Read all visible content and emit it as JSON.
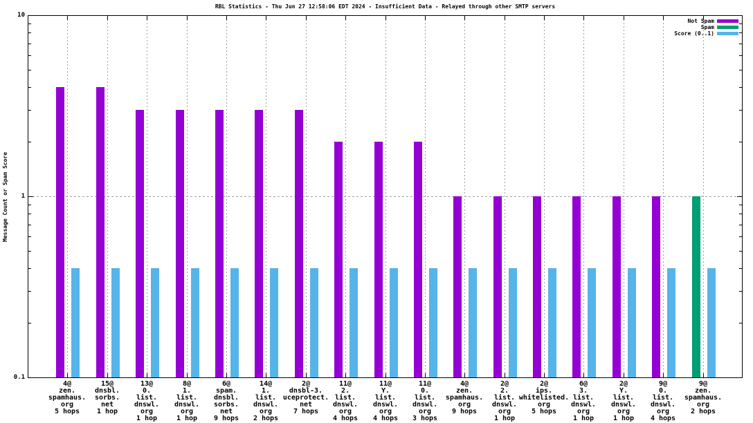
{
  "title": "RBL Statistics - Thu Jun 27 12:58:06 EDT 2024 - Insufficient Data - Relayed through other SMTP servers",
  "y_axis": {
    "label": "Message Count or Spam Score",
    "scale": "log",
    "range": [
      0.1,
      10
    ],
    "ticks": [
      "10",
      "1",
      "0.1"
    ]
  },
  "legend": [
    {
      "label": "Not Spam",
      "color": "#9400d3"
    },
    {
      "label": "Spam",
      "color": "#009e73"
    },
    {
      "label": "Score (0..1)",
      "color": "#56b4e9"
    }
  ],
  "colors": {
    "not_spam": "#9400d3",
    "spam": "#009e73",
    "score": "#56b4e9",
    "grid": "#9e9e9e"
  },
  "chart_data": {
    "type": "bar",
    "scale": "log",
    "ylim": [
      0.1,
      10
    ],
    "ylabel": "Message Count or Spam Score",
    "grid": "dotted, vertical per category and horizontal at y=1",
    "legend_position": "top-right",
    "categories": [
      [
        "4@",
        "zen.",
        "spamhaus.",
        "org",
        "5 hops"
      ],
      [
        "15@",
        "dnsbl.",
        "sorbs.",
        "net",
        "1 hop"
      ],
      [
        "13@",
        "0.",
        "list.",
        "dnswl.",
        "org",
        "1 hop"
      ],
      [
        "8@",
        "1.",
        "list.",
        "dnswl.",
        "org",
        "1 hop"
      ],
      [
        "6@",
        "spam.",
        "dnsbl.",
        "sorbs.",
        "net",
        "9 hops"
      ],
      [
        "14@",
        "1.",
        "list.",
        "dnswl.",
        "org",
        "2 hops"
      ],
      [
        "2@",
        "dnsbl-3.",
        "uceprotect.",
        "net",
        "7 hops"
      ],
      [
        "11@",
        "2.",
        "list.",
        "dnswl.",
        "org",
        "4 hops"
      ],
      [
        "11@",
        "Y.",
        "list.",
        "dnswl.",
        "org",
        "4 hops"
      ],
      [
        "11@",
        "0.",
        "list.",
        "dnswl.",
        "org",
        "3 hops"
      ],
      [
        "4@",
        "zen.",
        "spamhaus.",
        "org",
        "9 hops"
      ],
      [
        "2@",
        "2.",
        "list.",
        "dnswl.",
        "org",
        "1 hop"
      ],
      [
        "2@",
        "ips.",
        "whitelisted.",
        "org",
        "5 hops"
      ],
      [
        "6@",
        "3.",
        "list.",
        "dnswl.",
        "org",
        "1 hop"
      ],
      [
        "2@",
        "Y.",
        "list.",
        "dnswl.",
        "org",
        "1 hop"
      ],
      [
        "9@",
        "0.",
        "list.",
        "dnswl.",
        "org",
        "4 hops"
      ],
      [
        "9@",
        "zen.",
        "spamhaus.",
        "org",
        "2 hops"
      ]
    ],
    "series": [
      {
        "name": "Not Spam",
        "color": "#9400d3",
        "values": [
          4,
          4,
          3,
          3,
          3,
          3,
          3,
          2,
          2,
          2,
          1,
          1,
          1,
          1,
          1,
          1,
          null
        ]
      },
      {
        "name": "Spam",
        "color": "#009e73",
        "values": [
          null,
          null,
          null,
          null,
          null,
          null,
          null,
          null,
          null,
          null,
          null,
          null,
          null,
          null,
          null,
          null,
          1
        ]
      },
      {
        "name": "Score (0..1)",
        "color": "#56b4e9",
        "values": [
          0.4,
          0.4,
          0.4,
          0.4,
          0.4,
          0.4,
          0.4,
          0.4,
          0.4,
          0.4,
          0.4,
          0.4,
          0.4,
          0.4,
          0.4,
          0.4,
          0.4
        ]
      }
    ]
  }
}
